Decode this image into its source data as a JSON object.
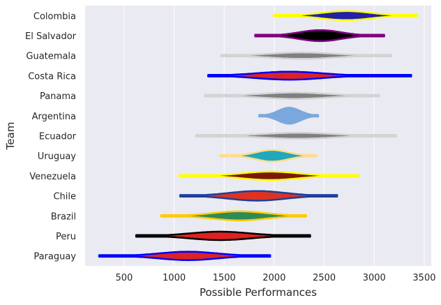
{
  "chart_data": {
    "type": "violin",
    "orientation": "horizontal",
    "xlabel": "Possible Performances",
    "ylabel": "Team",
    "xlim": [
      110,
      3570
    ],
    "xticks": [
      500,
      1000,
      1500,
      2000,
      2500,
      3000,
      3500
    ],
    "grid": true,
    "background": "#eaeaf2",
    "teams": [
      {
        "name": "Colombia",
        "min": 2000,
        "max": 3430,
        "center": 2720,
        "spread": 250,
        "peak": 0.45,
        "fill": "#2222aa",
        "line": "#ffff00"
      },
      {
        "name": "El Salvador",
        "min": 1810,
        "max": 3100,
        "center": 2460,
        "spread": 210,
        "peak": 0.55,
        "fill": "#000000",
        "line": "#800080"
      },
      {
        "name": "Guatemala",
        "min": 1470,
        "max": 3170,
        "center": 2280,
        "spread": 320,
        "peak": 0.32,
        "fill": "#808080",
        "line": "#d3d3d3"
      },
      {
        "name": "Costa Rica",
        "min": 1340,
        "max": 3370,
        "center": 2150,
        "spread": 330,
        "peak": 0.4,
        "fill": "#dd2222",
        "line": "#0000ff"
      },
      {
        "name": "Panama",
        "min": 1310,
        "max": 3050,
        "center": 2200,
        "spread": 320,
        "peak": 0.32,
        "fill": "#808080",
        "line": "#d3d3d3"
      },
      {
        "name": "Argentina",
        "min": 1850,
        "max": 2440,
        "center": 2150,
        "spread": 110,
        "peak": 0.8,
        "fill": "#7aa8dd",
        "line": "#7aa8dd"
      },
      {
        "name": "Ecuador",
        "min": 1220,
        "max": 3220,
        "center": 2240,
        "spread": 340,
        "peak": 0.3,
        "fill": "#808080",
        "line": "#d3d3d3"
      },
      {
        "name": "Uruguay",
        "min": 1460,
        "max": 2420,
        "center": 1980,
        "spread": 160,
        "peak": 0.58,
        "fill": "#22a8bb",
        "line": "#ffdd88"
      },
      {
        "name": "Venezuela",
        "min": 1050,
        "max": 2840,
        "center": 1960,
        "spread": 280,
        "peak": 0.42,
        "fill": "#7a1a0a",
        "line": "#ffff00"
      },
      {
        "name": "Chile",
        "min": 1060,
        "max": 2630,
        "center": 1830,
        "spread": 280,
        "peak": 0.48,
        "fill": "#dd3322",
        "line": "#1e3f99"
      },
      {
        "name": "Brazil",
        "min": 870,
        "max": 2320,
        "center": 1650,
        "spread": 270,
        "peak": 0.45,
        "fill": "#2e8b57",
        "line": "#ffcc00"
      },
      {
        "name": "Peru",
        "min": 620,
        "max": 2360,
        "center": 1460,
        "spread": 300,
        "peak": 0.42,
        "fill": "#dd2222",
        "line": "#000000"
      },
      {
        "name": "Paraguay",
        "min": 250,
        "max": 1960,
        "center": 1140,
        "spread": 290,
        "peak": 0.42,
        "fill": "#dd2222",
        "line": "#0000ff"
      }
    ]
  }
}
